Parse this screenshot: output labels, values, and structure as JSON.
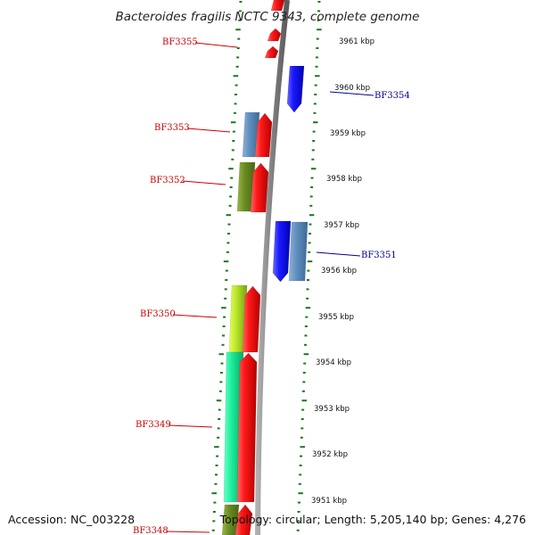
{
  "title": "Bacteroides fragilis NCTC 9343, complete genome",
  "accession": "Accession: NC_003228",
  "info": "Topology: circular; Length: 5,205,140 bp; Genes: 4,276",
  "colors": {
    "forward_gene": "#ff1a1a",
    "reverse_gene": "#1a1aff",
    "backbone": "#808080",
    "ticks": "#1a7a1a",
    "forward_label": "#cc0000",
    "reverse_label": "#000099"
  },
  "kbp_labels": [
    "3961 kbp",
    "3960 kbp",
    "3959 kbp",
    "3958 kbp",
    "3957 kbp",
    "3956 kbp",
    "3955 kbp",
    "3954 kbp",
    "3953 kbp",
    "3952 kbp",
    "3951 kbp"
  ],
  "gene_labels": [
    {
      "name": "BF3355",
      "strand": "forward"
    },
    {
      "name": "BF3354",
      "strand": "reverse"
    },
    {
      "name": "BF3353",
      "strand": "forward"
    },
    {
      "name": "BF3352",
      "strand": "forward"
    },
    {
      "name": "BF3351",
      "strand": "reverse"
    },
    {
      "name": "BF3350",
      "strand": "forward"
    },
    {
      "name": "BF3349",
      "strand": "forward"
    },
    {
      "name": "BF3348",
      "strand": "forward"
    }
  ]
}
